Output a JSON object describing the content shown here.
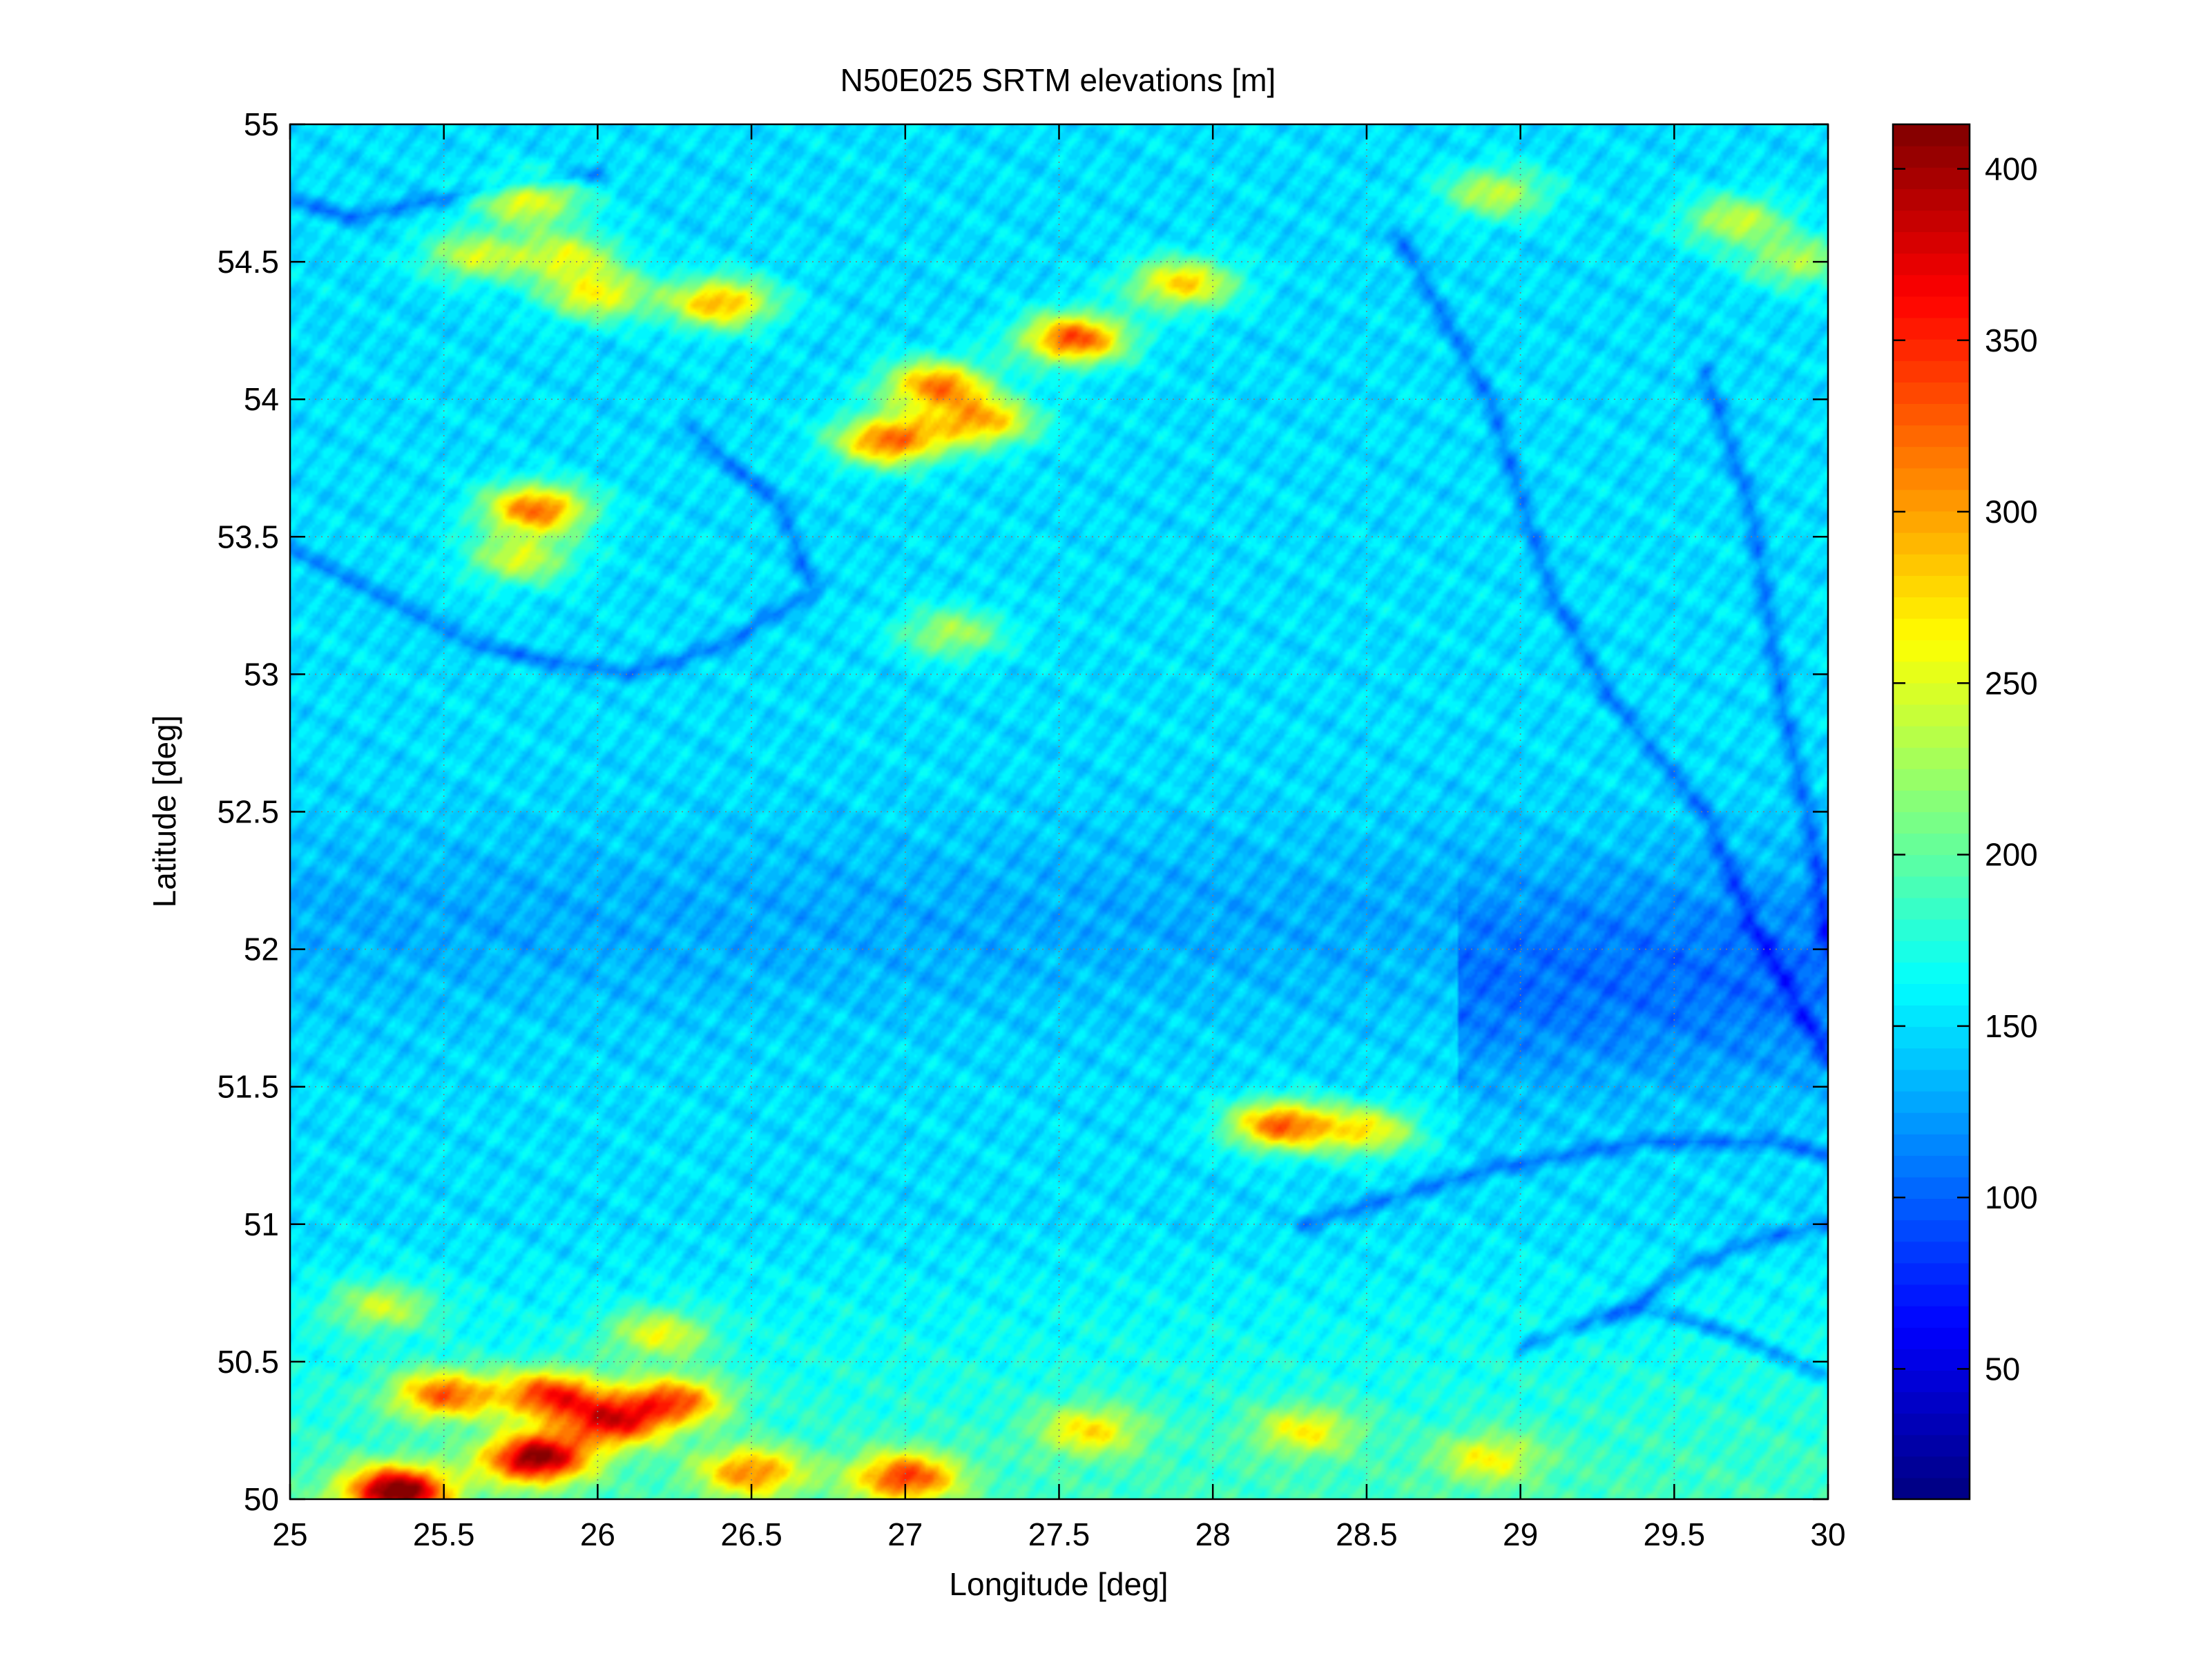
{
  "chart_data": {
    "type": "heatmap",
    "title": "N50E025 SRTM elevations [m]",
    "xlabel": "Longitude [deg]",
    "ylabel": "Latitude [deg]",
    "xlim": [
      25,
      30
    ],
    "ylim": [
      50,
      55
    ],
    "xticks": [
      25,
      25.5,
      26,
      26.5,
      27,
      27.5,
      28,
      28.5,
      29,
      29.5,
      30
    ],
    "xtick_labels": [
      "25",
      "25.5",
      "26",
      "26.5",
      "27",
      "27.5",
      "28",
      "28.5",
      "29",
      "29.5",
      "30"
    ],
    "yticks": [
      50,
      50.5,
      51,
      51.5,
      52,
      52.5,
      53,
      53.5,
      54,
      54.5,
      55
    ],
    "ytick_labels": [
      "50",
      "50.5",
      "51",
      "51.5",
      "52",
      "52.5",
      "53",
      "53.5",
      "54",
      "54.5",
      "55"
    ],
    "grid": true,
    "colormap": "jet",
    "colorbar": {
      "clim": [
        12,
        413
      ],
      "ticks": [
        50,
        100,
        150,
        200,
        250,
        300,
        350,
        400
      ],
      "tick_labels": [
        "50",
        "100",
        "150",
        "200",
        "250",
        "300",
        "350",
        "400"
      ],
      "levels": 64
    },
    "background_elevation": 150,
    "lowlands": [
      {
        "lon_range": [
          25,
          30
        ],
        "lat_center": 52.1,
        "lat_halfwidth": 0.35,
        "elevation": 130
      },
      {
        "lon_range": [
          28.8,
          30
        ],
        "lat_center": 51.8,
        "lat_halfwidth": 0.35,
        "elevation": 118
      }
    ],
    "rivers": [
      {
        "points": [
          [
            25.0,
            54.72
          ],
          [
            25.2,
            54.66
          ],
          [
            25.45,
            54.72
          ],
          [
            25.7,
            54.78
          ],
          [
            26.0,
            54.82
          ]
        ]
      },
      {
        "points": [
          [
            26.3,
            53.9
          ],
          [
            26.6,
            53.6
          ],
          [
            26.7,
            53.3
          ],
          [
            26.4,
            53.1
          ],
          [
            26.1,
            53.0
          ],
          [
            25.6,
            53.1
          ],
          [
            25.0,
            53.45
          ]
        ]
      },
      {
        "points": [
          [
            28.6,
            54.6
          ],
          [
            28.9,
            54.0
          ],
          [
            29.1,
            53.3
          ],
          [
            29.3,
            52.9
          ],
          [
            29.6,
            52.5
          ],
          [
            29.75,
            52.1
          ],
          [
            29.9,
            51.8
          ],
          [
            30.0,
            51.6
          ]
        ]
      },
      {
        "points": [
          [
            29.6,
            54.1
          ],
          [
            29.75,
            53.6
          ],
          [
            29.85,
            52.9
          ],
          [
            29.95,
            52.4
          ],
          [
            30.0,
            52.0
          ]
        ]
      },
      {
        "points": [
          [
            28.3,
            51.0
          ],
          [
            28.9,
            51.2
          ],
          [
            29.4,
            51.3
          ],
          [
            29.8,
            51.3
          ],
          [
            30.0,
            51.25
          ]
        ]
      },
      {
        "points": [
          [
            29.3,
            50.65
          ],
          [
            29.55,
            50.85
          ],
          [
            29.8,
            50.95
          ],
          [
            30.0,
            51.0
          ]
        ]
      },
      {
        "points": [
          [
            29.0,
            50.55
          ],
          [
            29.35,
            50.7
          ],
          [
            29.7,
            50.6
          ],
          [
            30.0,
            50.45
          ]
        ]
      }
    ],
    "features": [
      {
        "lon": 27.55,
        "lat": 54.22,
        "peak": 345
      },
      {
        "lon": 26.95,
        "lat": 53.85,
        "peak": 335
      },
      {
        "lon": 27.1,
        "lat": 54.05,
        "peak": 320
      },
      {
        "lon": 27.25,
        "lat": 53.92,
        "peak": 300
      },
      {
        "lon": 26.4,
        "lat": 54.35,
        "peak": 305
      },
      {
        "lon": 26.0,
        "lat": 54.38,
        "peak": 270
      },
      {
        "lon": 25.8,
        "lat": 53.6,
        "peak": 330
      },
      {
        "lon": 25.75,
        "lat": 53.42,
        "peak": 255
      },
      {
        "lon": 27.9,
        "lat": 54.42,
        "peak": 290
      },
      {
        "lon": 25.78,
        "lat": 54.72,
        "peak": 265
      },
      {
        "lon": 25.9,
        "lat": 54.52,
        "peak": 255
      },
      {
        "lon": 25.6,
        "lat": 54.52,
        "peak": 250
      },
      {
        "lon": 28.92,
        "lat": 54.75,
        "peak": 250
      },
      {
        "lon": 29.7,
        "lat": 54.65,
        "peak": 250
      },
      {
        "lon": 29.9,
        "lat": 54.5,
        "peak": 240
      },
      {
        "lon": 28.22,
        "lat": 51.36,
        "peak": 330
      },
      {
        "lon": 28.5,
        "lat": 51.34,
        "peak": 270
      },
      {
        "lon": 27.15,
        "lat": 53.15,
        "peak": 240
      },
      {
        "lon": 25.8,
        "lat": 50.15,
        "peak": 390
      },
      {
        "lon": 25.35,
        "lat": 50.03,
        "peak": 400
      },
      {
        "lon": 26.05,
        "lat": 50.28,
        "peak": 330
      },
      {
        "lon": 25.85,
        "lat": 50.38,
        "peak": 330
      },
      {
        "lon": 26.25,
        "lat": 50.36,
        "peak": 310
      },
      {
        "lon": 25.5,
        "lat": 50.38,
        "peak": 310
      },
      {
        "lon": 27.0,
        "lat": 50.08,
        "peak": 320
      },
      {
        "lon": 26.5,
        "lat": 50.1,
        "peak": 290
      },
      {
        "lon": 27.6,
        "lat": 50.25,
        "peak": 255
      },
      {
        "lon": 28.3,
        "lat": 50.25,
        "peak": 245
      },
      {
        "lon": 25.3,
        "lat": 50.7,
        "peak": 240
      },
      {
        "lon": 26.2,
        "lat": 50.6,
        "peak": 250
      },
      {
        "lon": 28.9,
        "lat": 50.15,
        "peak": 240
      }
    ],
    "colors": {
      "grid": "#7f7f7f",
      "axes": "#000000",
      "background": "#ffffff"
    }
  }
}
